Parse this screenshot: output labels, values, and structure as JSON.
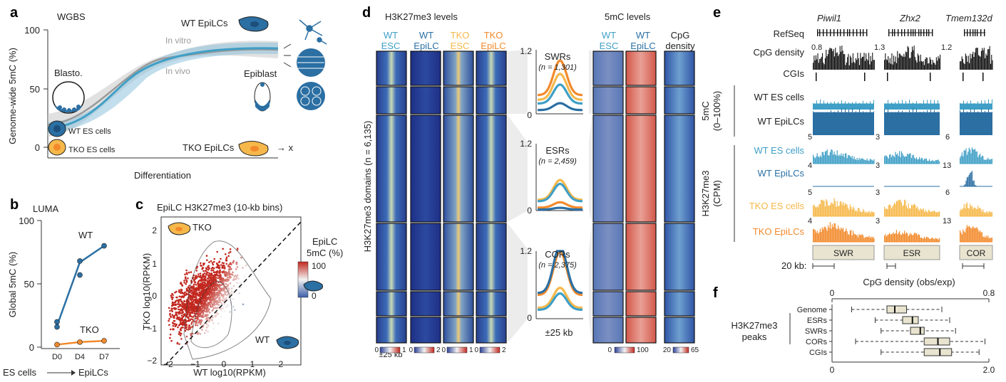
{
  "panels": {
    "a": "a",
    "b": "b",
    "c": "c",
    "d": "d",
    "e": "e",
    "f": "f"
  },
  "colors": {
    "wt": "#2b6fa3",
    "tko": "#f28a2c",
    "wt_light": "#3f9fc6",
    "tko_light": "#f6b84a",
    "gray": "#9a9a9a"
  },
  "a": {
    "title": "WGBS",
    "ylabel": "Genome-wide 5mC (%)",
    "xlabel": "Differentiation",
    "yticks": [
      "100",
      "50",
      "0"
    ],
    "in_vitro": "In vitro",
    "in_vivo": "In vivo",
    "blasto": "Blasto.",
    "epiblast": "Epiblast",
    "wt_epilcs": "WT EpiLCs",
    "tko_epilcs": "TKO EpiLCs",
    "wt_es": "WT ES cells",
    "tko_es": "TKO ES cells",
    "x_mark": "→ x"
  },
  "b": {
    "title": "LUMA",
    "ylabel": "Global 5mC (%)",
    "yticks": [
      "100",
      "50",
      "0"
    ],
    "xticks": [
      "D0",
      "D4",
      "D7"
    ],
    "wt": "WT",
    "tko": "TKO",
    "es_cells": "ES cells",
    "epilcs": "EpiLCs",
    "arrow": "→"
  },
  "chart_data": [
    {
      "type": "line",
      "title": "LUMA",
      "xlabel": "",
      "ylabel": "Global 5mC (%)",
      "ylim": [
        0,
        100
      ],
      "categories": [
        "D0",
        "D4",
        "D7"
      ],
      "series": [
        {
          "name": "WT",
          "values": [
            17,
            67,
            80
          ],
          "points": [
            [
              0,
              20
            ],
            [
              0,
              16
            ],
            [
              4,
              68
            ],
            [
              4,
              57
            ],
            [
              7,
              80
            ]
          ]
        },
        {
          "name": "TKO",
          "values": [
            2,
            4,
            5
          ],
          "points": [
            [
              0,
              2
            ],
            [
              4,
              4
            ],
            [
              7,
              5
            ]
          ]
        }
      ]
    },
    {
      "type": "scatter",
      "title": "EpiLC H3K27me3 (10-kb bins)",
      "xlabel": "WT log10(RPKM)",
      "ylabel": "TKO log10(RPKM)",
      "xlim": [
        -2,
        2.5
      ],
      "ylim": [
        -2,
        2.4
      ],
      "color_label": "EpiLC 5mC (%)",
      "color_range": [
        0,
        100
      ]
    },
    {
      "type": "bar",
      "title": "CpG density (obs/exp)",
      "xlim": [
        0,
        0.8
      ],
      "secondary_axis": [
        0,
        2.0
      ],
      "categories": [
        "Genome",
        "ESRs",
        "SWRs",
        "CORs",
        "CGIs"
      ],
      "values": [
        0.32,
        0.41,
        0.45,
        0.54,
        0.55
      ]
    }
  ],
  "c": {
    "title": "EpiLC H3K27me3 (10-kb bins)",
    "tko": "TKO",
    "wt": "WT",
    "ylabel": "TKO log10(RPKM)",
    "xlabel": "WT log10(RPKM)",
    "xticks": [
      "−2",
      "−1",
      "0",
      "1",
      "2"
    ],
    "yticks": [
      "2",
      "1",
      "0",
      "−1",
      "−2"
    ],
    "legend_title1": "EpiLC",
    "legend_title2": "5mC (%)",
    "legend_max": "100",
    "legend_min": "0"
  },
  "d": {
    "h3k27_title": "H3K27me3 levels",
    "mc_title": "5mC levels",
    "cols": [
      {
        "l1": "WT",
        "l2": "ESC"
      },
      {
        "l1": "WT",
        "l2": "EpiLC"
      },
      {
        "l1": "TKO",
        "l2": "ESC"
      },
      {
        "l1": "TKO",
        "l2": "EpiLC"
      }
    ],
    "mc_cols": [
      {
        "l1": "WT",
        "l2": "ESC"
      },
      {
        "l1": "WT",
        "l2": "EpiLC"
      }
    ],
    "cpg_col": {
      "l1": "CpG",
      "l2": "density"
    },
    "ylabel": "H3K27me3 domains (n = 6,135)",
    "profiles": [
      {
        "name": "SWRs",
        "n": "(n = 1,301)",
        "ymax": "1.2",
        "ymin": "0"
      },
      {
        "name": "ESRs",
        "n": "(n = 2,459)",
        "ymax": "1.2",
        "ymin": "0"
      },
      {
        "name": "CORs",
        "n": "(n = 2,375)",
        "ymax": "1.2",
        "ymin": "0"
      }
    ],
    "pm25": "±25 kb",
    "scale_labels": [
      "0",
      "1",
      "0",
      "2",
      "0",
      "1",
      "0",
      "2"
    ],
    "mc_scale": [
      "0",
      "100"
    ],
    "cpg_scale": [
      "20",
      "65"
    ]
  },
  "e": {
    "genes": [
      "Piwil1",
      "Zhx2",
      "Tmem132d"
    ],
    "tracks": {
      "refseq": "RefSeq",
      "cpg": "CpG density",
      "cgis": "CGIs",
      "wt_es": "WT ES cells",
      "wt_epi": "WT EpiLCs",
      "tko_es": "TKO ES cells",
      "tko_epi": "TKO EpiLCs"
    },
    "group_5mc": "5mC",
    "group_5mc_sub": "(0–100%)",
    "group_h3": "H3K27me3",
    "group_h3_sub": "(CPM)",
    "cpg_scales": [
      "0.8",
      "1.3",
      "1.2"
    ],
    "h3_scales": [
      "5",
      "3",
      "6",
      "4",
      "3",
      "13",
      "5",
      "3",
      "6",
      "4",
      "3",
      "13"
    ],
    "regions": [
      "SWR",
      "ESR",
      "COR"
    ],
    "kb": "20 kb:"
  },
  "f": {
    "title": "CpG density (obs/exp)",
    "top_ticks": [
      "0",
      "0.8"
    ],
    "bottom_ticks": [
      "0",
      "2.0"
    ],
    "rows": [
      "Genome",
      "ESRs",
      "SWRs",
      "CORs",
      "CGIs"
    ],
    "group": "H3K27me3",
    "group2": "peaks"
  }
}
